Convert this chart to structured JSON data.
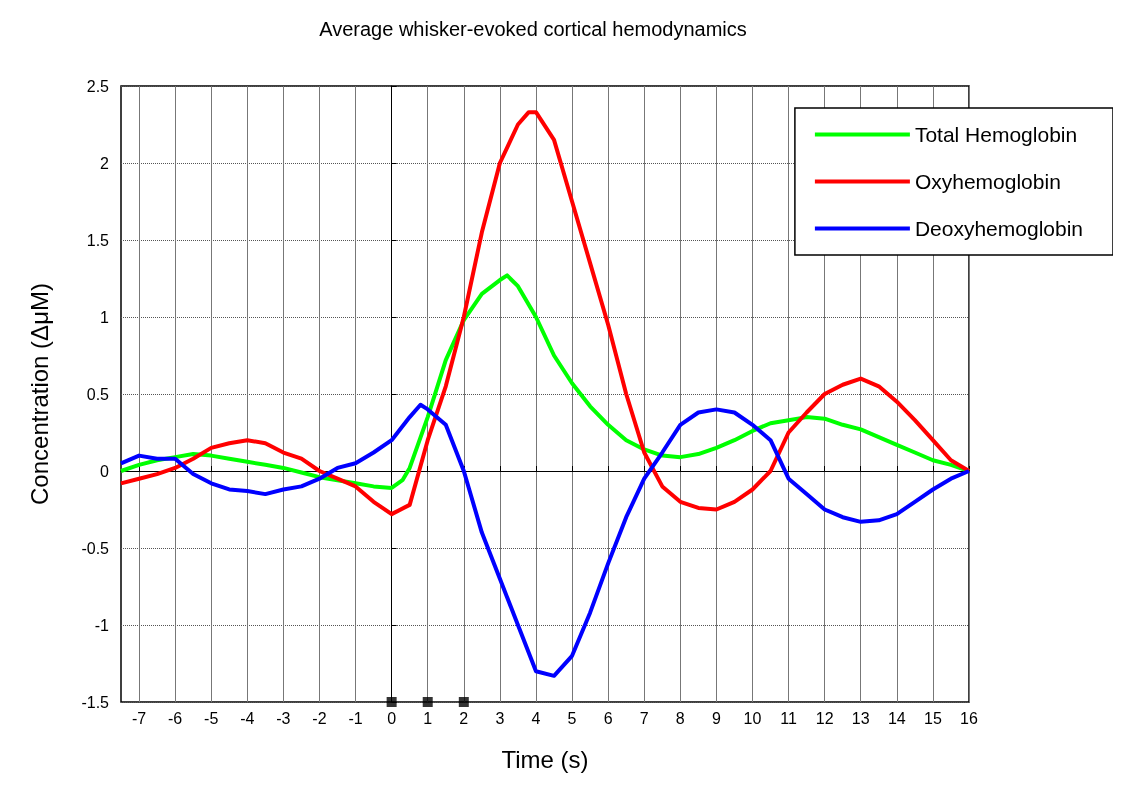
{
  "chart_data": {
    "type": "line",
    "title": "Average whisker-evoked cortical hemodynamics",
    "xlabel": "Time (s)",
    "ylabel": "Concentration (ΔμM)",
    "xlim": [
      -7.5,
      16
    ],
    "xticks": [
      -7,
      -6,
      -5,
      -4,
      -3,
      -2,
      -1,
      0,
      1,
      2,
      3,
      4,
      5,
      6,
      7,
      8,
      9,
      10,
      11,
      12,
      13,
      14,
      15,
      16
    ],
    "ylim": [
      -1.5,
      2.5
    ],
    "yticks": [
      -1.5,
      -1,
      -0.5,
      0,
      0.5,
      1,
      1.5,
      2,
      2.5
    ],
    "grid": true,
    "legend": "top right",
    "marker": "none",
    "line_style": "solid",
    "series": [
      {
        "name": "Total Hemoglobin",
        "color": "#00ff00",
        "x": [
          -7.5,
          -7,
          -6.5,
          -6,
          -5.5,
          -5,
          -4.5,
          -4,
          -3.5,
          -3,
          -2.5,
          -2,
          -1.5,
          -1,
          -0.5,
          0,
          0.3,
          0.5,
          1,
          1.5,
          2,
          2.5,
          3,
          3.2,
          3.5,
          4,
          4.5,
          5,
          5.5,
          6,
          6.5,
          7,
          7.5,
          8,
          8.5,
          9,
          9.5,
          10,
          10.5,
          11,
          11.5,
          12,
          12.5,
          13,
          13.5,
          14,
          14.5,
          15,
          15.5,
          16
        ],
        "values": [
          0,
          0.04,
          0.07,
          0.09,
          0.11,
          0.1,
          0.08,
          0.06,
          0.04,
          0.02,
          -0.01,
          -0.04,
          -0.06,
          -0.08,
          -0.1,
          -0.11,
          -0.06,
          0.02,
          0.35,
          0.72,
          0.98,
          1.15,
          1.24,
          1.27,
          1.2,
          1,
          0.75,
          0.57,
          0.42,
          0.3,
          0.2,
          0.14,
          0.1,
          0.09,
          0.11,
          0.15,
          0.2,
          0.26,
          0.31,
          0.33,
          0.35,
          0.34,
          0.3,
          0.27,
          0.22,
          0.17,
          0.12,
          0.07,
          0.04,
          0
        ]
      },
      {
        "name": "Oxyhemoglobin",
        "color": "#ff0000",
        "x": [
          -7.5,
          -7,
          -6.5,
          -6,
          -5.5,
          -5,
          -4.5,
          -4,
          -3.5,
          -3,
          -2.5,
          -2,
          -1.5,
          -1,
          -0.5,
          0,
          0.5,
          1,
          1.5,
          2,
          2.5,
          3,
          3.5,
          3.8,
          4,
          4.5,
          5,
          5.5,
          6,
          6.5,
          7,
          7.5,
          8,
          8.5,
          9,
          9.5,
          10,
          10.5,
          11,
          11.5,
          12,
          12.5,
          13,
          13.5,
          14,
          14.5,
          15,
          15.5,
          16
        ],
        "values": [
          -0.08,
          -0.05,
          -0.02,
          0.02,
          0.08,
          0.15,
          0.18,
          0.2,
          0.18,
          0.12,
          0.08,
          0,
          -0.05,
          -0.1,
          -0.2,
          -0.28,
          -0.22,
          0.2,
          0.55,
          1,
          1.55,
          2,
          2.25,
          2.33,
          2.33,
          2.15,
          1.75,
          1.35,
          0.95,
          0.5,
          0.12,
          -0.1,
          -0.2,
          -0.24,
          -0.25,
          -0.2,
          -0.12,
          0,
          0.25,
          0.38,
          0.5,
          0.56,
          0.6,
          0.55,
          0.45,
          0.33,
          0.2,
          0.07,
          0
        ]
      },
      {
        "name": "Deoxyhemoglobin",
        "color": "#0000ff",
        "x": [
          -7.5,
          -7,
          -6.5,
          -6,
          -5.5,
          -5,
          -4.5,
          -4,
          -3.5,
          -3,
          -2.5,
          -2,
          -1.5,
          -1,
          -0.5,
          0,
          0.5,
          0.8,
          1,
          1.5,
          2,
          2.5,
          3,
          3.5,
          4,
          4.5,
          5,
          5.5,
          6,
          6.5,
          7,
          7.5,
          8,
          8.5,
          9,
          9.5,
          10,
          10.5,
          11,
          11.5,
          12,
          12.5,
          13,
          13.5,
          14,
          14.5,
          15,
          15.5,
          16
        ],
        "values": [
          0.05,
          0.1,
          0.08,
          0.08,
          -0.02,
          -0.08,
          -0.12,
          -0.13,
          -0.15,
          -0.12,
          -0.1,
          -0.05,
          0.02,
          0.05,
          0.12,
          0.2,
          0.35,
          0.43,
          0.4,
          0.3,
          0,
          -0.4,
          -0.7,
          -1,
          -1.3,
          -1.33,
          -1.2,
          -0.92,
          -0.6,
          -0.3,
          -0.05,
          0.12,
          0.3,
          0.38,
          0.4,
          0.38,
          0.3,
          0.2,
          -0.05,
          -0.15,
          -0.25,
          -0.3,
          -0.33,
          -0.32,
          -0.28,
          -0.2,
          -0.12,
          -0.05,
          0
        ]
      },
      {
        "type": "scatter",
        "marker": "square",
        "color": "#000000",
        "x": [
          0,
          1,
          2
        ],
        "values": [
          -1.5,
          -1.5,
          -1.5
        ]
      }
    ]
  }
}
